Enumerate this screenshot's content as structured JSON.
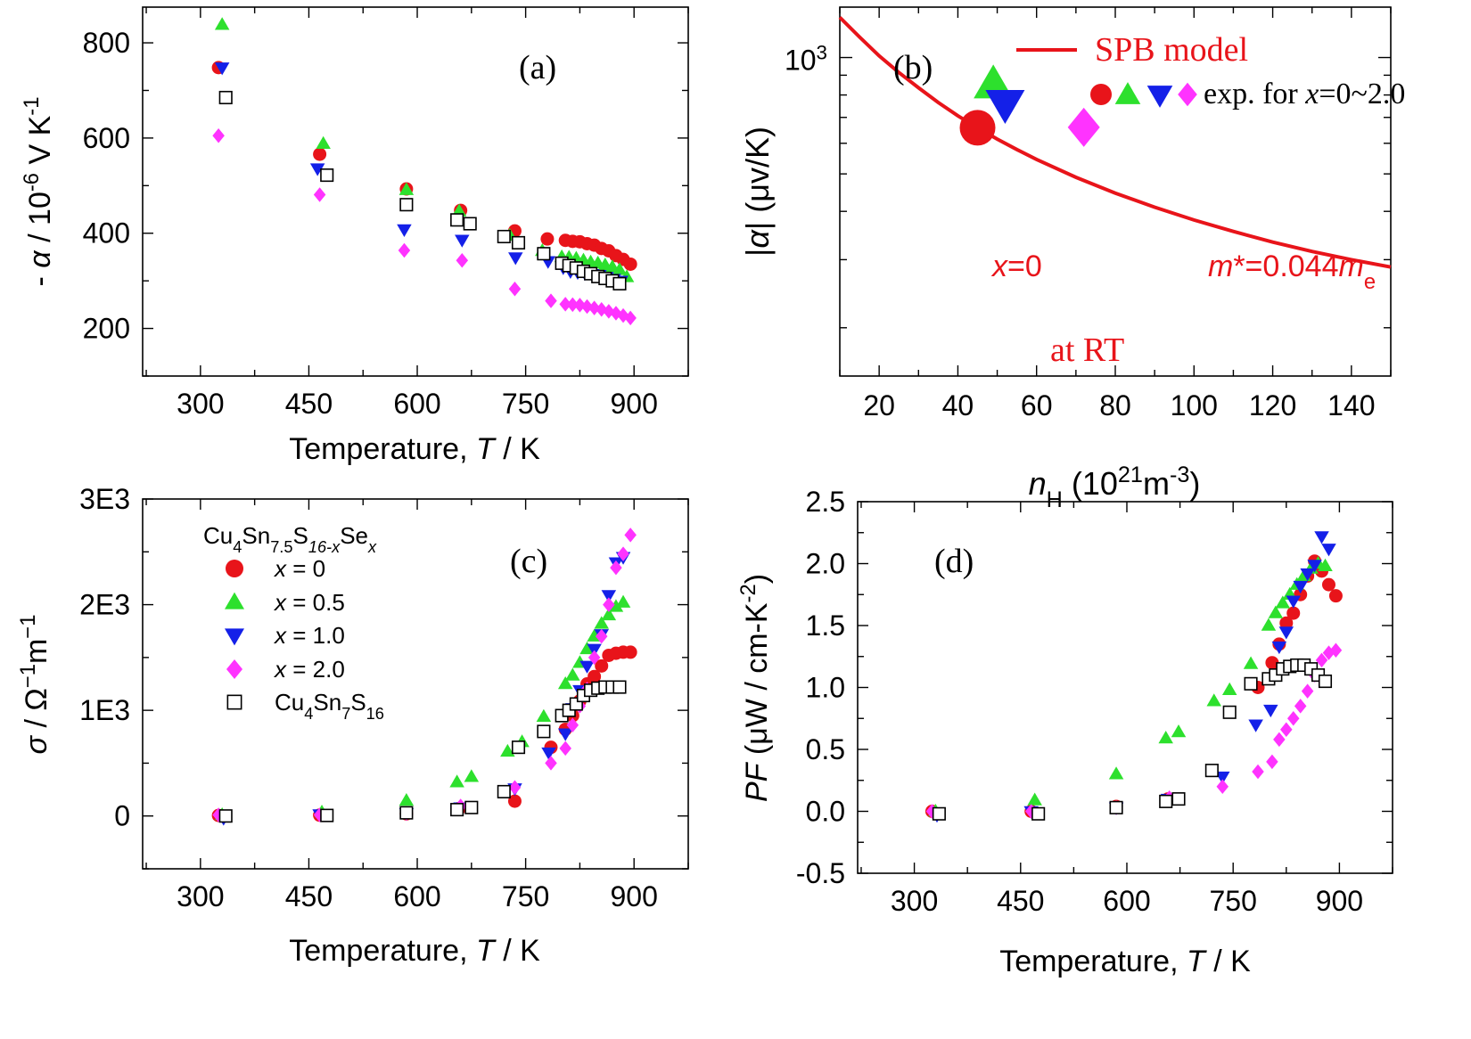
{
  "colors": {
    "x0": "#e8141a",
    "x05": "#2de02d",
    "x10": "#1420e8",
    "x20": "#ff33ff",
    "ref": "#000000",
    "model": "#e8141a"
  },
  "panels": {
    "a": {
      "label": "(a)",
      "ylabel_parts": [
        "- ",
        "α",
        " / 10",
        "-6",
        " V K",
        "-1"
      ],
      "xlabel_parts": [
        "Temperature, ",
        "T",
        " / K"
      ]
    },
    "b": {
      "label": "(b)",
      "ylabel_parts": [
        "|",
        "α",
        "| (μv/K)"
      ],
      "xlabel_parts": [
        "n",
        "H",
        " (10",
        "21",
        "m",
        "-3",
        ")"
      ],
      "legend_model": "SPB model",
      "legend_exp_parts": [
        "exp. for ",
        "x",
        "=0~2.0"
      ],
      "ann_x0_parts": [
        "x",
        "=0"
      ],
      "ann_mass_parts": [
        "m",
        "*=0.044",
        "m",
        "e"
      ],
      "ann_rt": "at RT",
      "ytick_parts": [
        "10",
        "3"
      ]
    },
    "c": {
      "label": "(c)",
      "ylabel_parts": [
        "σ",
        " / Ω",
        "−1",
        "m",
        "−1"
      ],
      "xlabel_parts": [
        "Temperature, ",
        "T",
        " / K"
      ]
    },
    "d": {
      "label": "(d)",
      "ylabel_parts": [
        "PF",
        " (μW / cm-K",
        "-2",
        ")"
      ],
      "xlabel_parts": [
        "Temperature, ",
        "T",
        " / K"
      ]
    }
  },
  "legend_c": {
    "title_parts": [
      "Cu",
      "4",
      "Sn",
      "7.5",
      "S",
      "16-x",
      "Se",
      "x"
    ],
    "entries": [
      {
        "var": "x",
        "text": " = 0",
        "series": "x0"
      },
      {
        "var": "x",
        "text": " = 0.5",
        "series": "x05"
      },
      {
        "var": "x",
        "text": " = 1.0",
        "series": "x10"
      },
      {
        "var": "x",
        "text": " = 2.0",
        "series": "x20"
      }
    ],
    "ref_parts": [
      "Cu",
      "4",
      "Sn",
      "7",
      "S",
      "16"
    ]
  },
  "chart_data": [
    {
      "panel": "a",
      "type": "scatter",
      "title": "(a)",
      "xlabel": "Temperature, T / K",
      "ylabel": "- α / 10^-6 V K^-1",
      "xlim": [
        220,
        975
      ],
      "ylim": [
        100,
        875
      ],
      "xticks": [
        300,
        450,
        600,
        750,
        900
      ],
      "yticks": [
        200,
        400,
        600,
        800
      ],
      "series": [
        {
          "name": "x = 0",
          "marker": "circle",
          "x": [
            325,
            465,
            585,
            660,
            735,
            780,
            805,
            815,
            825,
            835,
            845,
            855,
            865,
            875,
            885,
            895
          ],
          "y": [
            748,
            566,
            493,
            448,
            405,
            388,
            385,
            383,
            382,
            378,
            375,
            368,
            363,
            353,
            345,
            335
          ]
        },
        {
          "name": "x = 0.5",
          "marker": "triangle-up",
          "x": [
            330,
            470,
            585,
            658,
            728,
            773,
            800,
            810,
            820,
            830,
            840,
            850,
            860,
            870,
            880,
            890
          ],
          "y": [
            838,
            588,
            491,
            446,
            395,
            363,
            350,
            349,
            347,
            343,
            339,
            337,
            333,
            329,
            323,
            308
          ]
        },
        {
          "name": "x = 1.0",
          "marker": "triangle-down",
          "x": [
            330,
            462,
            582,
            662,
            736,
            781,
            802,
            812,
            822,
            832,
            842,
            852,
            862,
            872,
            882
          ],
          "y": [
            748,
            536,
            408,
            386,
            349,
            341,
            328,
            320,
            318,
            316,
            314,
            312,
            308,
            304,
            300
          ]
        },
        {
          "name": "x = 2.0",
          "marker": "diamond",
          "x": [
            325,
            465,
            582,
            662,
            735,
            785,
            805,
            815,
            825,
            835,
            845,
            855,
            865,
            875,
            885,
            895
          ],
          "y": [
            605,
            481,
            364,
            343,
            283,
            258,
            251,
            250,
            249,
            246,
            243,
            240,
            236,
            232,
            227,
            222
          ]
        },
        {
          "name": "Cu4Sn7S16",
          "marker": "square-open",
          "x": [
            335,
            475,
            585,
            655,
            673,
            720,
            740,
            775,
            800,
            810,
            820,
            830,
            840,
            850,
            860,
            870,
            880
          ],
          "y": [
            685,
            522,
            460,
            428,
            420,
            393,
            380,
            357,
            337,
            332,
            327,
            320,
            315,
            309,
            305,
            300,
            294
          ]
        }
      ]
    },
    {
      "panel": "b",
      "type": "scatter",
      "title": "(b)",
      "xlabel": "n_H (10^21 m^-3)",
      "ylabel": "|α| (μv/K)",
      "yscale": "log",
      "xlim": [
        10,
        150
      ],
      "ylim": [
        150,
        1350
      ],
      "xticks": [
        20,
        40,
        60,
        80,
        100,
        120,
        140
      ],
      "yticks": [
        1000
      ],
      "model": {
        "name": "SPB model",
        "m_eff": "0.044 m_e",
        "x": [
          10,
          15,
          20,
          25,
          30,
          35,
          40,
          45,
          50,
          55,
          60,
          70,
          80,
          90,
          100,
          110,
          120,
          130,
          140,
          150
        ],
        "y": [
          1270,
          1130,
          1010,
          915,
          835,
          765,
          707,
          658,
          615,
          578,
          545,
          490,
          446,
          410,
          380,
          355,
          333,
          315,
          300,
          287
        ]
      },
      "series": [
        {
          "name": "x = 0",
          "marker": "circle",
          "x": [
            45
          ],
          "y": [
            658
          ]
        },
        {
          "name": "x = 0.5",
          "marker": "triangle-up",
          "x": [
            49
          ],
          "y": [
            850
          ]
        },
        {
          "name": "x = 1.0",
          "marker": "triangle-down",
          "x": [
            52
          ],
          "y": [
            760
          ]
        },
        {
          "name": "x = 2.0",
          "marker": "diamond",
          "x": [
            72
          ],
          "y": [
            660
          ]
        }
      ]
    },
    {
      "panel": "c",
      "type": "scatter",
      "title": "(c)",
      "xlabel": "Temperature, T / K",
      "ylabel": "σ / Ω^-1 m^-1",
      "xlim": [
        220,
        975
      ],
      "ylim": [
        -500,
        3000
      ],
      "xticks": [
        300,
        450,
        600,
        750,
        900
      ],
      "yticks": [
        0,
        1000,
        2000,
        3000
      ],
      "ytick_labels": [
        "0",
        "1E3",
        "2E3",
        "3E3"
      ],
      "series": [
        {
          "name": "x = 0",
          "marker": "circle",
          "x": [
            325,
            465,
            585,
            658,
            735,
            785,
            805,
            815,
            825,
            835,
            845,
            855,
            865,
            875,
            885,
            895
          ],
          "y": [
            5,
            8,
            20,
            70,
            140,
            650,
            820,
            950,
            1090,
            1250,
            1320,
            1420,
            1520,
            1540,
            1550,
            1550
          ]
        },
        {
          "name": "x = 0.5",
          "marker": "triangle-up",
          "x": [
            330,
            468,
            585,
            655,
            675,
            725,
            745,
            775,
            805,
            815,
            825,
            835,
            845,
            855,
            865,
            875,
            885
          ],
          "y": [
            10,
            35,
            145,
            320,
            370,
            610,
            700,
            940,
            1250,
            1330,
            1450,
            1580,
            1700,
            1820,
            1900,
            1980,
            2020
          ]
        },
        {
          "name": "x = 1.0",
          "marker": "triangle-down",
          "x": [
            332,
            465,
            585,
            660,
            735,
            782,
            805,
            815,
            825,
            835,
            845,
            855,
            865,
            875,
            885
          ],
          "y": [
            -20,
            15,
            25,
            80,
            260,
            600,
            780,
            1020,
            1190,
            1420,
            1580,
            1720,
            2090,
            2400,
            2450
          ]
        },
        {
          "name": "x = 2.0",
          "marker": "diamond",
          "x": [
            325,
            465,
            585,
            660,
            735,
            785,
            805,
            815,
            825,
            835,
            845,
            855,
            865,
            875,
            885,
            895
          ],
          "y": [
            10,
            10,
            25,
            95,
            270,
            500,
            640,
            860,
            1040,
            1200,
            1500,
            1700,
            2000,
            2350,
            2480,
            2660
          ]
        },
        {
          "name": "Cu4Sn7S16",
          "marker": "square-open",
          "x": [
            335,
            475,
            585,
            655,
            675,
            720,
            740,
            775,
            800,
            810,
            820,
            830,
            840,
            850,
            860,
            870,
            880
          ],
          "y": [
            0,
            5,
            30,
            60,
            80,
            230,
            650,
            800,
            950,
            1000,
            1060,
            1140,
            1190,
            1210,
            1220,
            1220,
            1220
          ]
        }
      ]
    },
    {
      "panel": "d",
      "type": "scatter",
      "title": "(d)",
      "xlabel": "Temperature, T / K",
      "ylabel": "PF (μW / cm-K^-2)",
      "xlim": [
        220,
        975
      ],
      "ylim": [
        -0.5,
        2.5
      ],
      "xticks": [
        300,
        450,
        600,
        750,
        900
      ],
      "yticks": [
        -0.5,
        0,
        0.5,
        1.0,
        1.5,
        2.0,
        2.5
      ],
      "ytick_labels": [
        "-0.5",
        "0.0",
        "0.5",
        "1.0",
        "1.5",
        "2.0",
        "2.5"
      ],
      "series": [
        {
          "name": "x = 0",
          "marker": "circle",
          "x": [
            325,
            465,
            585,
            658,
            785,
            805,
            815,
            825,
            835,
            845,
            855,
            865,
            875,
            885,
            895
          ],
          "y": [
            0.0,
            0.0,
            0.04,
            0.1,
            1.0,
            1.2,
            1.35,
            1.52,
            1.6,
            1.75,
            1.9,
            2.02,
            1.94,
            1.83,
            1.74
          ]
        },
        {
          "name": "x = 0.5",
          "marker": "triangle-up",
          "x": [
            330,
            470,
            585,
            655,
            673,
            723,
            745,
            775,
            800,
            810,
            820,
            830,
            840,
            850,
            860,
            870,
            880
          ],
          "y": [
            0.0,
            0.09,
            0.3,
            0.59,
            0.64,
            0.89,
            0.98,
            1.19,
            1.5,
            1.6,
            1.68,
            1.75,
            1.83,
            1.9,
            1.96,
            2.0,
            1.98
          ]
        },
        {
          "name": "x = 1.0",
          "marker": "triangle-down",
          "x": [
            332,
            465,
            585,
            658,
            735,
            782,
            803,
            815,
            825,
            835,
            845,
            855,
            865,
            875,
            885
          ],
          "y": [
            -0.03,
            0.0,
            0.03,
            0.1,
            0.28,
            0.7,
            0.82,
            1.33,
            1.45,
            1.7,
            1.82,
            1.92,
            1.99,
            2.22,
            2.12
          ]
        },
        {
          "name": "x = 2.0",
          "marker": "diamond",
          "x": [
            325,
            465,
            585,
            660,
            735,
            785,
            805,
            815,
            825,
            835,
            845,
            855,
            865,
            875,
            885,
            895
          ],
          "y": [
            0.0,
            0.0,
            0.03,
            0.11,
            0.2,
            0.32,
            0.4,
            0.58,
            0.66,
            0.75,
            0.85,
            0.97,
            1.1,
            1.22,
            1.28,
            1.3
          ]
        },
        {
          "name": "Cu4Sn7S16",
          "marker": "square-open",
          "x": [
            335,
            475,
            585,
            655,
            673,
            720,
            745,
            775,
            800,
            810,
            820,
            830,
            840,
            850,
            860,
            870,
            880
          ],
          "y": [
            -0.02,
            -0.02,
            0.03,
            0.08,
            0.1,
            0.33,
            0.8,
            1.03,
            1.07,
            1.1,
            1.15,
            1.17,
            1.18,
            1.18,
            1.15,
            1.1,
            1.05
          ]
        }
      ]
    }
  ]
}
